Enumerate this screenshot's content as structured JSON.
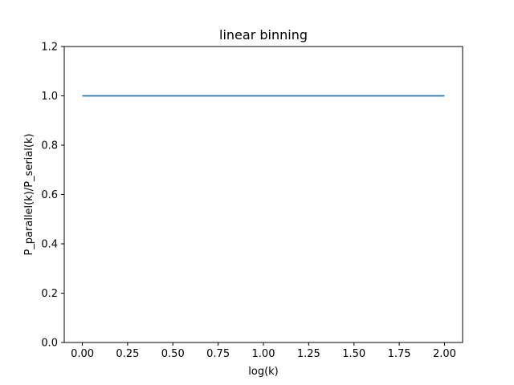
{
  "chart_data": {
    "type": "line",
    "title": "linear binning",
    "xlabel": "log(k)",
    "ylabel": "P_parallel(k)/P_serial(k)",
    "xlim": [
      -0.1,
      2.1
    ],
    "ylim": [
      0,
      1.2
    ],
    "xticks": [
      "0.00",
      "0.25",
      "0.50",
      "0.75",
      "1.00",
      "1.25",
      "1.50",
      "1.75",
      "2.00"
    ],
    "yticks": [
      "0.0",
      "0.2",
      "0.4",
      "0.6",
      "0.8",
      "1.0",
      "1.2"
    ],
    "grid": false,
    "series": [
      {
        "color": "#1f77b4",
        "x": [
          0.0,
          0.25,
          0.5,
          0.75,
          1.0,
          1.25,
          1.5,
          1.75,
          2.0
        ],
        "y": [
          1.0,
          1.0,
          1.0,
          1.0,
          1.0,
          1.0,
          1.0,
          1.0,
          1.0
        ]
      }
    ]
  }
}
